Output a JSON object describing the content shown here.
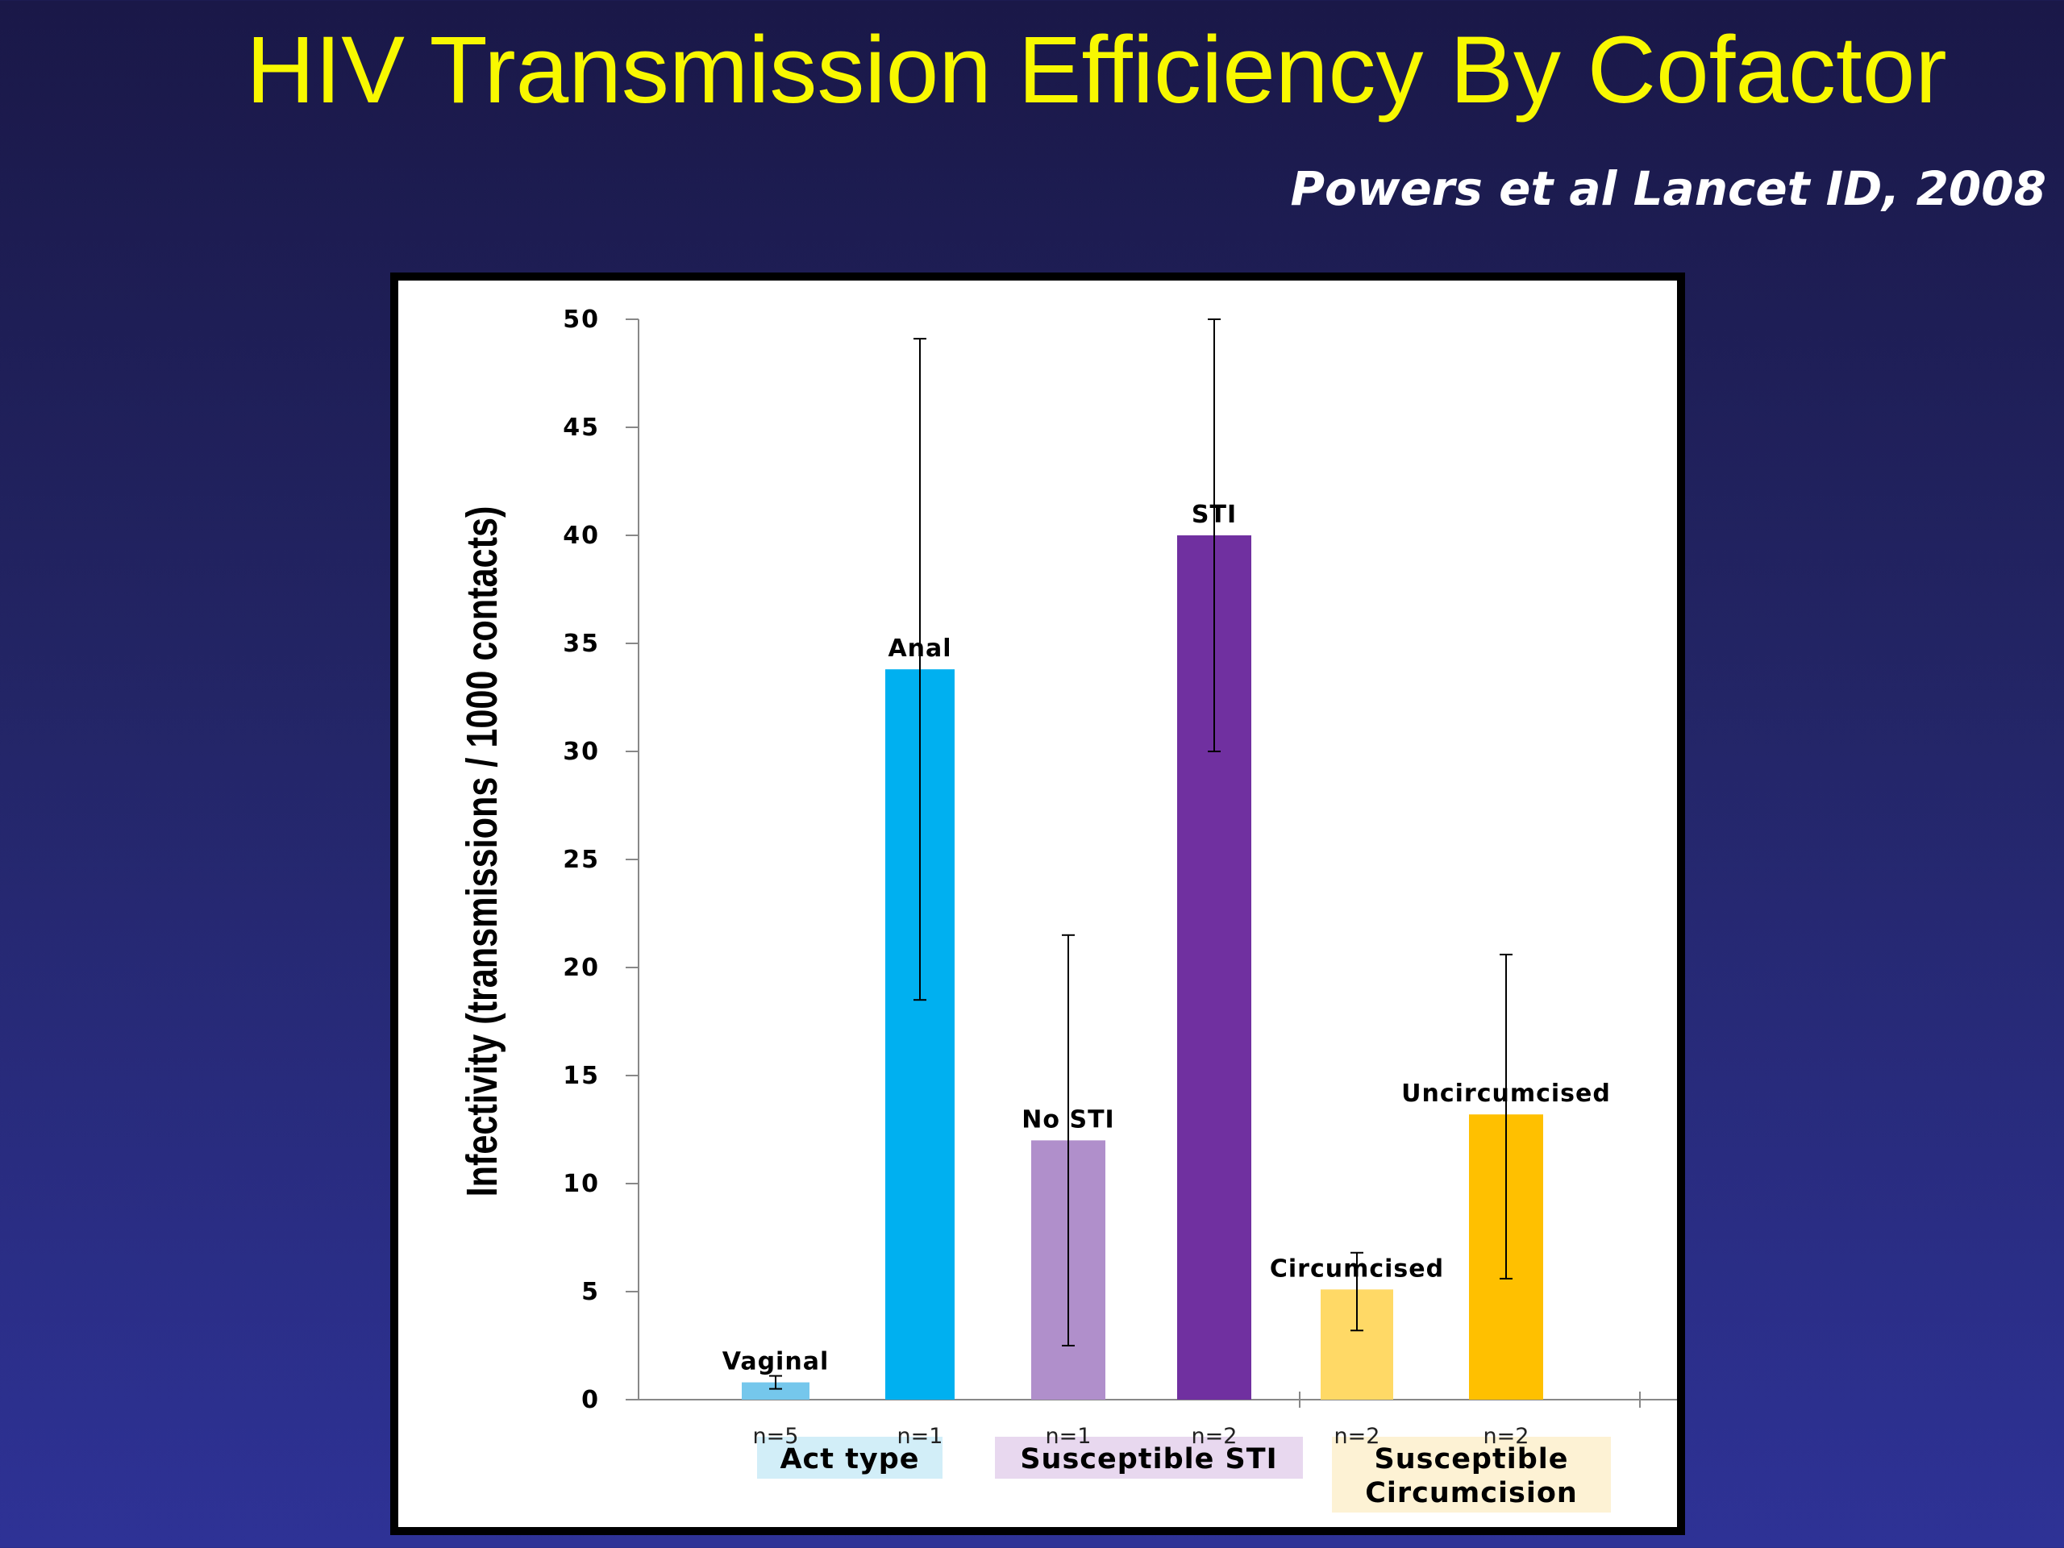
{
  "slide": {
    "title": "HIV Transmission Efficiency By Cofactor",
    "citation": "Powers et al Lancet ID, 2008"
  },
  "chart_data": {
    "type": "bar",
    "title": "",
    "xlabel": "",
    "ylabel": "Infectivity (transmissions / 1000 contacts)",
    "ylim": [
      0,
      50
    ],
    "yticks": [
      0,
      5,
      10,
      15,
      20,
      25,
      30,
      35,
      40,
      45,
      50
    ],
    "grid": false,
    "categories": [
      "Vaginal",
      "Anal",
      "No STI",
      "STI",
      "Circumcised",
      "Uncircumcised"
    ],
    "values": [
      0.8,
      33.8,
      12.0,
      40.0,
      5.1,
      13.2
    ],
    "error_low": [
      0.5,
      18.5,
      2.5,
      30.0,
      3.2,
      5.6
    ],
    "error_high": [
      1.1,
      49.1,
      21.5,
      50.0,
      6.8,
      20.6
    ],
    "n_labels": [
      "n=5",
      "n=1",
      "n=1",
      "n=2",
      "n=2",
      "n=2"
    ],
    "colors": [
      "#75c7ec",
      "#00b0f0",
      "#b08fcb",
      "#7030a0",
      "#ffd966",
      "#ffc000"
    ],
    "groups": [
      {
        "label_lines": [
          "Act type"
        ],
        "bars": [
          0,
          1
        ],
        "color": "#d2eef8"
      },
      {
        "label_lines": [
          "Susceptible STI"
        ],
        "bars": [
          2,
          3
        ],
        "color": "#e8d8ef"
      },
      {
        "label_lines": [
          "Susceptible",
          "Circumcision"
        ],
        "bars": [
          4,
          5
        ],
        "color": "#fdf2d4"
      }
    ]
  }
}
